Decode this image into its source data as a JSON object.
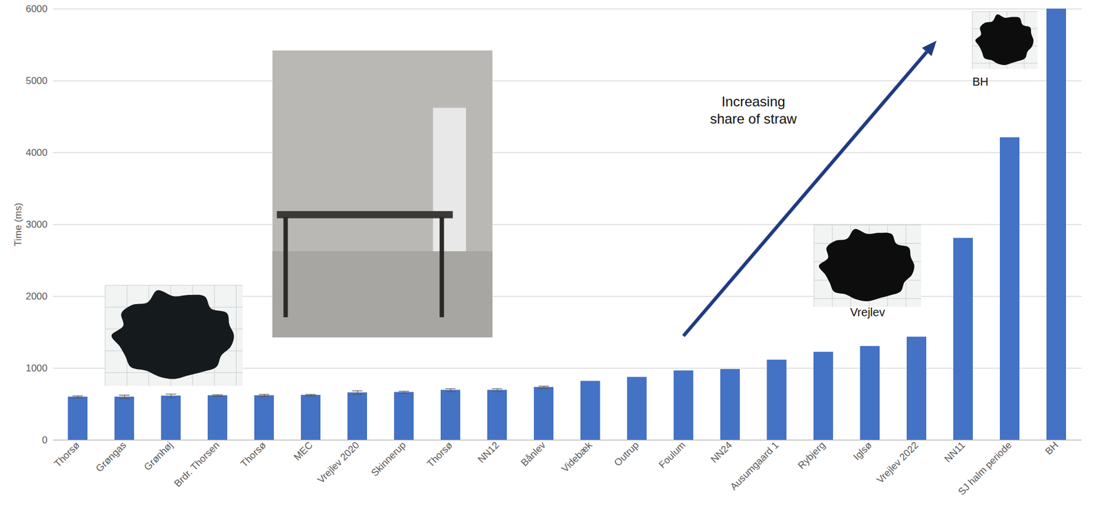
{
  "chart_data": {
    "type": "bar",
    "y_label": "Time (ms)",
    "categories": [
      "Thorsø",
      "Grøngas",
      "Grønhøj",
      "Brdr. Thorsen",
      "Thorsø",
      "MEC",
      "Vrejlev 2020",
      "Skinnerup",
      "Thorsø",
      "NN12",
      "Bånlev",
      "Videbæk",
      "Outrup",
      "Foulum",
      "NN24",
      "Ausumgaard 1",
      "Rybjerg",
      "Iglsø",
      "Vrejlev 2022",
      "NN11",
      "SJ halm periode",
      "BH"
    ],
    "values": [
      600,
      600,
      615,
      620,
      620,
      625,
      660,
      665,
      695,
      695,
      735,
      820,
      875,
      965,
      985,
      1115,
      1225,
      1305,
      1435,
      2810,
      4210,
      6000
    ],
    "error": [
      15,
      25,
      25,
      10,
      15,
      10,
      25,
      15,
      20,
      20,
      15,
      null,
      null,
      null,
      null,
      null,
      null,
      null,
      null,
      null,
      null,
      null
    ],
    "color": "#4472c4",
    "ylim": [
      0,
      6000
    ],
    "yticks": [
      0,
      1000,
      2000,
      3000,
      4000,
      5000,
      6000
    ],
    "grid": true,
    "annotations": [
      "Increasing share of straw",
      "Vrejlev",
      "BH"
    ]
  }
}
